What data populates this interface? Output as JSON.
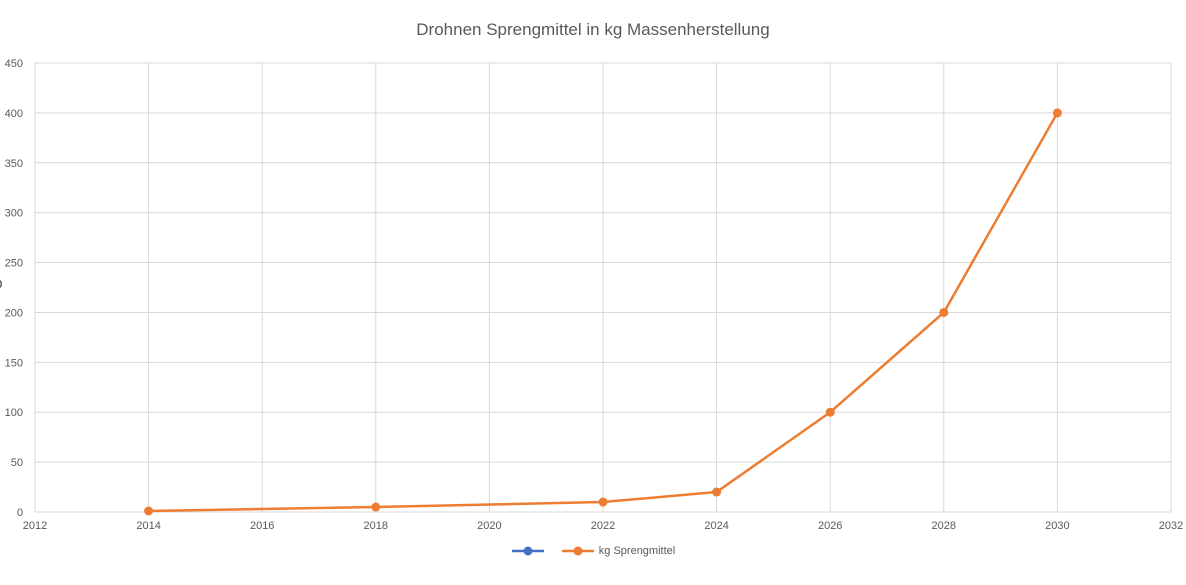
{
  "title": "Drohnen Sprengmittel in kg Massenherstellung",
  "y_axis_partial_label": "O",
  "legend": [
    {
      "label": "",
      "color": "#4472C4"
    },
    {
      "label": "kg Sprengmittel",
      "color": "#ED7D31"
    }
  ],
  "chart_data": {
    "type": "line",
    "title": "Drohnen Sprengmittel in kg Massenherstellung",
    "x": [
      2014,
      2018,
      2022,
      2024,
      2026,
      2028,
      2030
    ],
    "series": [
      {
        "name": "",
        "color": "#4472C4",
        "values": []
      },
      {
        "name": "kg Sprengmittel",
        "color": "#ED7D31",
        "values": [
          1,
          5,
          10,
          20,
          100,
          200,
          400
        ]
      }
    ],
    "xlim": [
      2012,
      2032
    ],
    "ylim": [
      0,
      450
    ],
    "x_ticks": [
      2012,
      2014,
      2016,
      2018,
      2020,
      2022,
      2024,
      2026,
      2028,
      2030,
      2032
    ],
    "y_ticks": [
      0,
      50,
      100,
      150,
      200,
      250,
      300,
      350,
      400,
      450
    ],
    "grid": true,
    "legend_position": "bottom",
    "gridline_color": "#D9D9D9",
    "tick_color": "#595959",
    "xlabel": "",
    "ylabel": ""
  }
}
